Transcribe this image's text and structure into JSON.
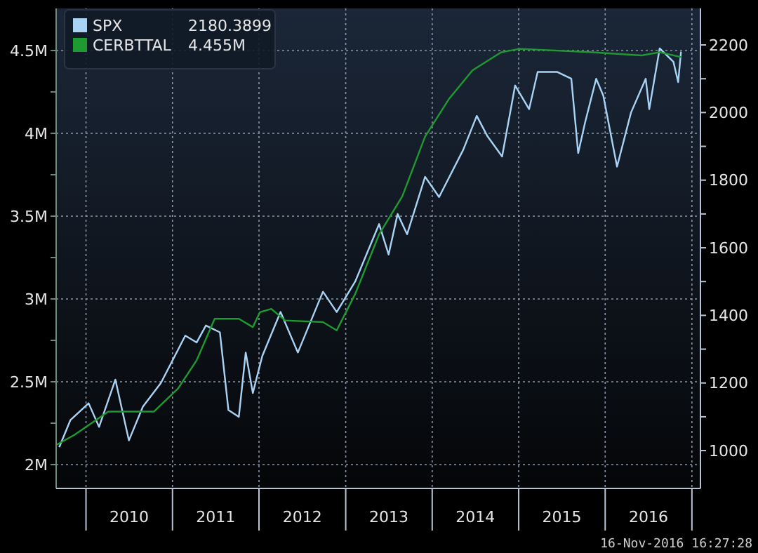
{
  "chart_data": {
    "type": "line",
    "xlim": [
      "2009-08-28",
      "2017-02-06"
    ],
    "xticks": [
      {
        "value": "2010-01-01",
        "label": null
      },
      {
        "value": "2010-07-02",
        "label": "2010"
      },
      {
        "value": "2011-01-01",
        "label": null
      },
      {
        "value": "2011-07-02",
        "label": "2011"
      },
      {
        "value": "2012-01-01",
        "label": null
      },
      {
        "value": "2012-07-02",
        "label": "2012"
      },
      {
        "value": "2013-01-01",
        "label": null
      },
      {
        "value": "2013-07-02",
        "label": "2013"
      },
      {
        "value": "2014-01-01",
        "label": null
      },
      {
        "value": "2014-07-02",
        "label": "2014"
      },
      {
        "value": "2015-01-01",
        "label": null
      },
      {
        "value": "2015-07-02",
        "label": "2015"
      },
      {
        "value": "2016-01-01",
        "label": null
      },
      {
        "value": "2016-07-02",
        "label": "2016"
      },
      {
        "value": "2017-01-01",
        "label": null
      }
    ],
    "ylim": [
      1.856,
      4.754
    ],
    "yticks": [
      {
        "value": 2,
        "label": "2M"
      },
      {
        "value": 2.25,
        "label": null
      },
      {
        "value": 2.5,
        "label": "2.5M"
      },
      {
        "value": 2.75,
        "label": null
      },
      {
        "value": 3,
        "label": "3M"
      },
      {
        "value": 3.25,
        "label": null
      },
      {
        "value": 3.5,
        "label": "3.5M"
      },
      {
        "value": 3.75,
        "label": null
      },
      {
        "value": 4,
        "label": "4M"
      },
      {
        "value": 4.25,
        "label": null
      },
      {
        "value": 4.5,
        "label": "4.5M"
      }
    ],
    "y2lim": [
      888,
      2308
    ],
    "y2ticks": [
      1000,
      {
        "value": 1100,
        "label": null
      },
      1200,
      {
        "value": 1300,
        "label": null
      },
      1400,
      {
        "value": 1500,
        "label": null
      },
      1600,
      {
        "value": 1700,
        "label": null
      },
      1800,
      {
        "value": 1900,
        "label": null
      },
      2000,
      {
        "value": 2100,
        "label": null
      },
      2200
    ],
    "grid": true,
    "legend": "top left",
    "annotations": [
      "2180.3899",
      "4.455M",
      "16-Nov-2016 16:27:28"
    ],
    "series": [
      {
        "name": "SPX",
        "color": "#a9d3f5",
        "axis": "y2",
        "x": [
          "2009-09-10",
          "2009-10-27",
          "2010-01-12",
          "2010-02-25",
          "2010-05-05",
          "2010-07-01",
          "2010-08-29",
          "2010-11-13",
          "2011-02-24",
          "2011-04-13",
          "2011-05-22",
          "2011-07-20",
          "2011-08-25",
          "2011-10-08",
          "2011-11-06",
          "2011-12-06",
          "2012-01-15",
          "2012-04-01",
          "2012-06-13",
          "2012-09-27",
          "2012-11-24",
          "2013-02-10",
          "2013-05-22",
          "2013-07-01",
          "2013-08-08",
          "2013-09-17",
          "2013-12-02",
          "2014-01-30",
          "2014-05-12",
          "2014-07-08",
          "2014-08-22",
          "2014-10-23",
          "2014-12-17",
          "2015-02-14",
          "2015-03-22",
          "2015-06-13",
          "2015-08-11",
          "2015-09-09",
          "2015-10-08",
          "2015-11-24",
          "2015-12-24",
          "2016-02-20",
          "2016-04-19",
          "2016-06-20",
          "2016-07-05",
          "2016-08-18",
          "2016-10-15",
          "2016-11-04",
          "2016-11-16"
        ],
        "values": [
          1010,
          1090,
          1140,
          1070,
          1210,
          1030,
          1130,
          1200,
          1340,
          1320,
          1370,
          1350,
          1120,
          1100,
          1290,
          1170,
          1280,
          1410,
          1290,
          1470,
          1410,
          1500,
          1670,
          1580,
          1700,
          1640,
          1810,
          1750,
          1890,
          1990,
          1930,
          1870,
          2080,
          2010,
          2120,
          2120,
          2100,
          1880,
          1970,
          2100,
          2050,
          1840,
          2000,
          2100,
          2010,
          2190,
          2150,
          2090,
          2180
        ]
      },
      {
        "name": "CERBTTAL",
        "color": "#1f9a30",
        "x": [
          "2009-08-30",
          "2009-11-14",
          "2010-04-05",
          "2010-10-15",
          "2011-01-25",
          "2011-04-13",
          "2011-06-28",
          "2011-10-08",
          "2011-12-06",
          "2012-01-05",
          "2012-02-22",
          "2012-04-20",
          "2012-09-27",
          "2012-11-24",
          "2013-02-10",
          "2013-05-22",
          "2013-08-28",
          "2013-12-02",
          "2014-03-14",
          "2014-06-20",
          "2014-10-20",
          "2015-01-05",
          "2015-10-27",
          "2016-06-03",
          "2016-08-18",
          "2016-11-16"
        ],
        "values": [
          2.12,
          2.18,
          2.32,
          2.32,
          2.46,
          2.63,
          2.88,
          2.88,
          2.83,
          2.92,
          2.94,
          2.87,
          2.86,
          2.81,
          3.03,
          3.39,
          3.62,
          3.98,
          4.21,
          4.38,
          4.49,
          4.51,
          4.49,
          4.47,
          4.49,
          4.46
        ]
      }
    ]
  }
}
